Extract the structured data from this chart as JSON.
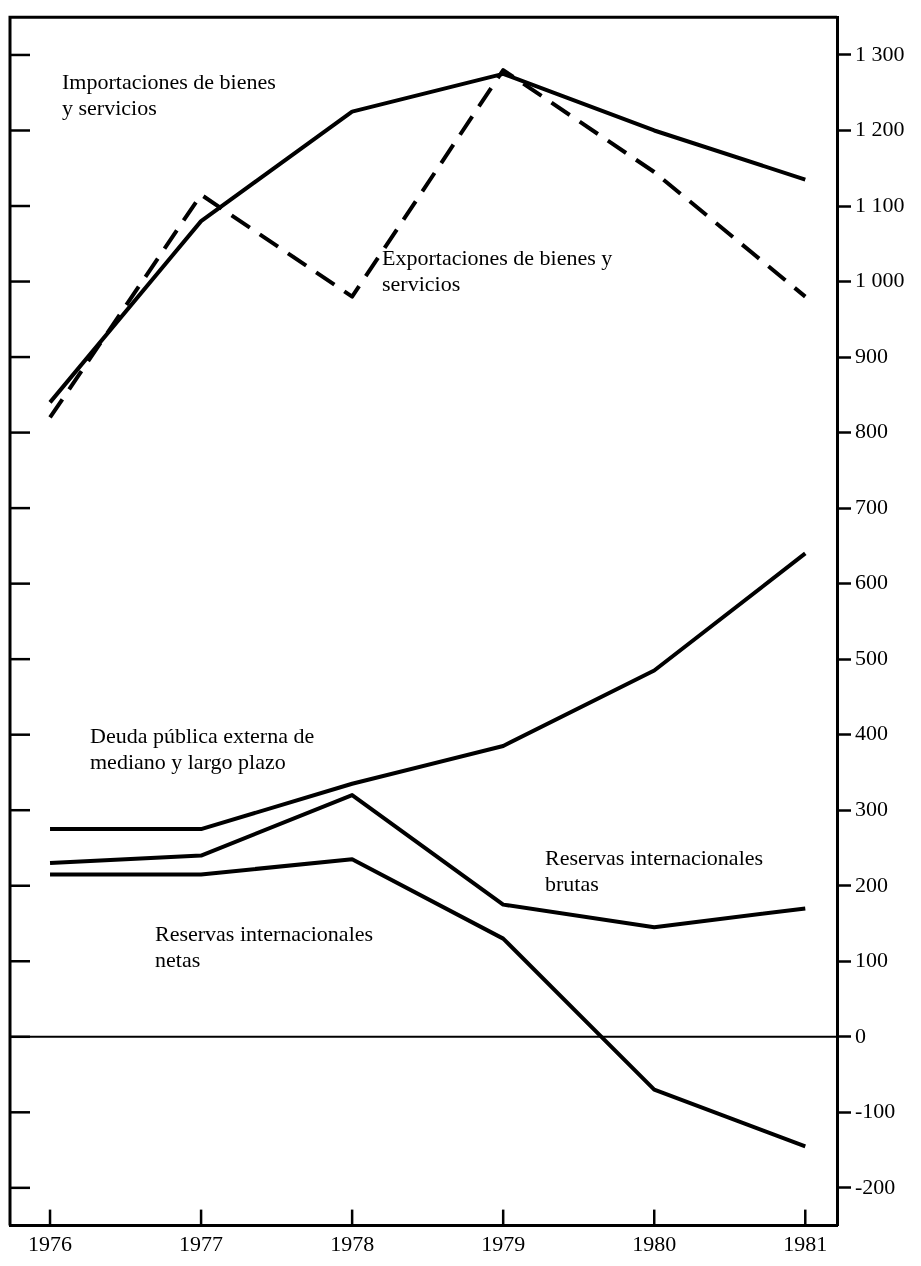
{
  "chart_data": {
    "type": "line",
    "categories": [
      "1976",
      "1977",
      "1978",
      "1979",
      "1980",
      "1981"
    ],
    "series": [
      {
        "name": "Importaciones de bienes y servicios",
        "color": "#000000",
        "line_style": "solid",
        "values": [
          840,
          1080,
          1225,
          1275,
          1200,
          1135
        ]
      },
      {
        "name": "Exportaciones de bienes y servicios",
        "color": "#000000",
        "line_style": "dashed",
        "values": [
          820,
          1115,
          980,
          1280,
          1145,
          980
        ]
      },
      {
        "name": "Deuda pública externa de mediano y largo plazo",
        "color": "#000000",
        "line_style": "solid",
        "values": [
          275,
          275,
          335,
          385,
          485,
          640
        ]
      },
      {
        "name": "Reservas internacionales brutas",
        "color": "#000000",
        "line_style": "solid",
        "values": [
          230,
          240,
          320,
          175,
          145,
          170
        ]
      },
      {
        "name": "Reservas internacionales netas",
        "color": "#000000",
        "line_style": "solid",
        "values": [
          215,
          215,
          235,
          130,
          -70,
          -145
        ]
      }
    ],
    "ylim": [
      -250,
      1350
    ],
    "yticks": [
      -200,
      -100,
      0,
      100,
      200,
      300,
      400,
      500,
      600,
      700,
      800,
      900,
      {
        "value": 1000,
        "label": "1 000"
      },
      {
        "value": 1100,
        "label": "1 100"
      },
      {
        "value": 1200,
        "label": "1 200"
      },
      {
        "value": 1300,
        "label": "1 300"
      }
    ],
    "ref_lines": [
      {
        "axis": "y",
        "value": 0,
        "color": "#000000"
      }
    ],
    "grid": false,
    "legend": false,
    "marker": "none"
  }
}
